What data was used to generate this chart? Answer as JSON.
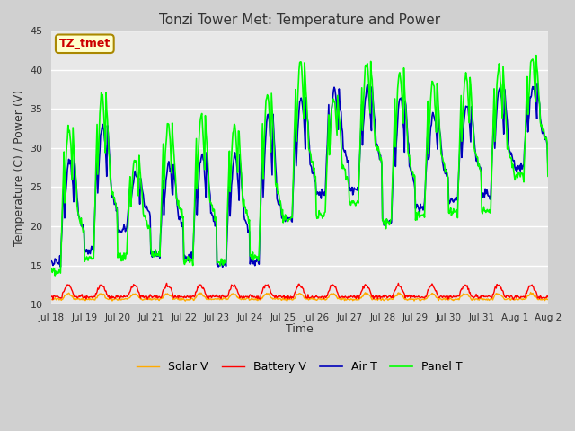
{
  "title": "Tonzi Tower Met: Temperature and Power",
  "xlabel": "Time",
  "ylabel": "Temperature (C) / Power (V)",
  "ylim": [
    10,
    45
  ],
  "annotation": "TZ_tmet",
  "background_color": "#e8e8e8",
  "grid_color": "white",
  "tick_labels": [
    "Jul 18",
    "Jul 19",
    "Jul 20",
    "Jul 21",
    "Jul 22",
    "Jul 23",
    "Jul 24",
    "Jul 25",
    "Jul 26",
    "Jul 27",
    "Jul 28",
    "Jul 29",
    "Jul 30",
    "Jul 31",
    "Aug 1",
    "Aug 2"
  ],
  "tick_positions": [
    0,
    24,
    48,
    72,
    96,
    120,
    144,
    168,
    192,
    216,
    240,
    264,
    288,
    312,
    336,
    360
  ],
  "legend": [
    "Panel T",
    "Battery V",
    "Air T",
    "Solar V"
  ],
  "line_colors": {
    "panel_t": "#00ff00",
    "battery_v": "#ff0000",
    "air_t": "#0000bb",
    "solar_v": "#ffaa00"
  },
  "line_widths": {
    "panel_t": 1.2,
    "battery_v": 1.0,
    "air_t": 1.2,
    "solar_v": 1.0
  },
  "yticks": [
    10,
    15,
    20,
    25,
    30,
    35,
    40,
    45
  ],
  "fig_facecolor": "#d0d0d0"
}
